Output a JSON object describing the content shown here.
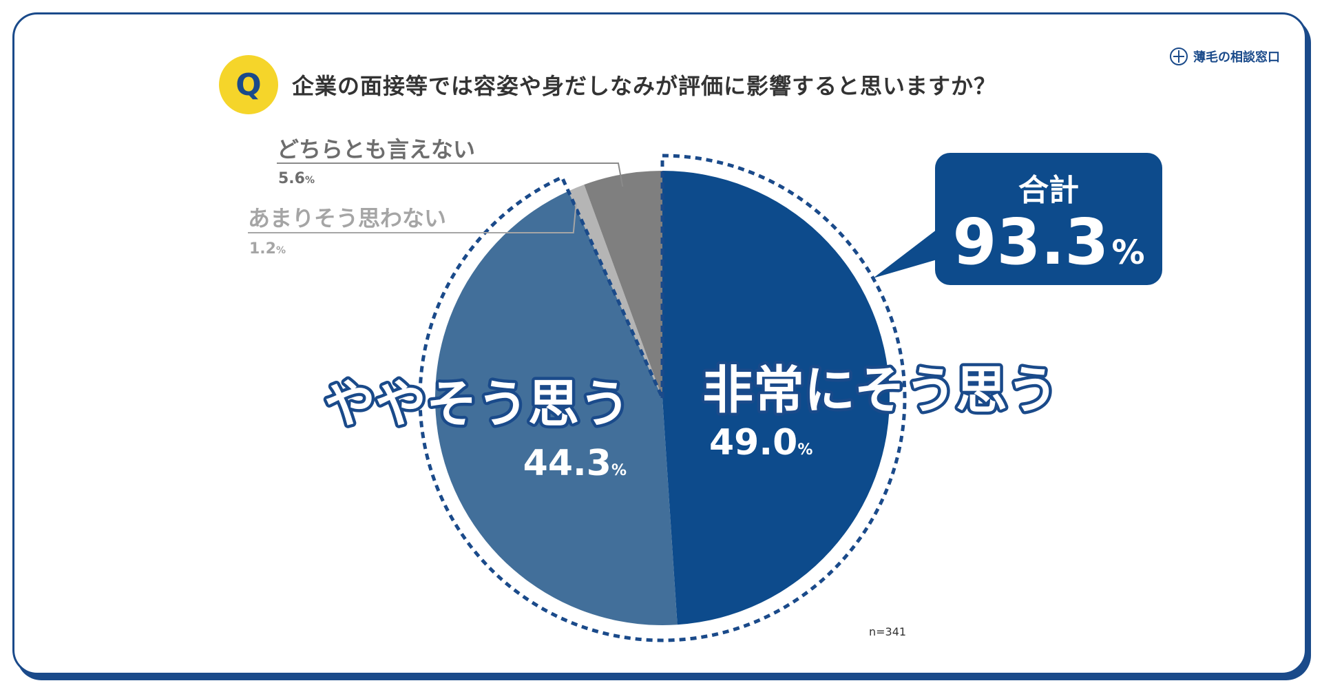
{
  "brand": {
    "name": "薄毛の相談窓口"
  },
  "question": {
    "badge": "Q",
    "text": "企業の面接等では容姿や身だしなみが評価に影響すると思いますか？"
  },
  "callout": {
    "label": "合計",
    "value": "93.3",
    "unit": "%"
  },
  "sample": "n=341",
  "colors": {
    "strongly_agree": "#0d4b8c",
    "somewhat_agree": "#426f9a",
    "somewhat_disagree": "#b5b5b5",
    "neutral": "#7f7f7f",
    "frame": "#1a4a8a",
    "badge": "#f5d52a"
  },
  "chart_data": {
    "type": "pie",
    "unit": "%",
    "slices": [
      {
        "label": "非常にそう思う",
        "value": 49.0,
        "display": "49.0"
      },
      {
        "label": "ややそう思う",
        "value": 44.3,
        "display": "44.3"
      },
      {
        "label": "あまりそう思わない",
        "value": 1.2,
        "display": "1.2"
      },
      {
        "label": "どちらとも言えない",
        "value": 5.6,
        "display": "5.6"
      }
    ]
  }
}
